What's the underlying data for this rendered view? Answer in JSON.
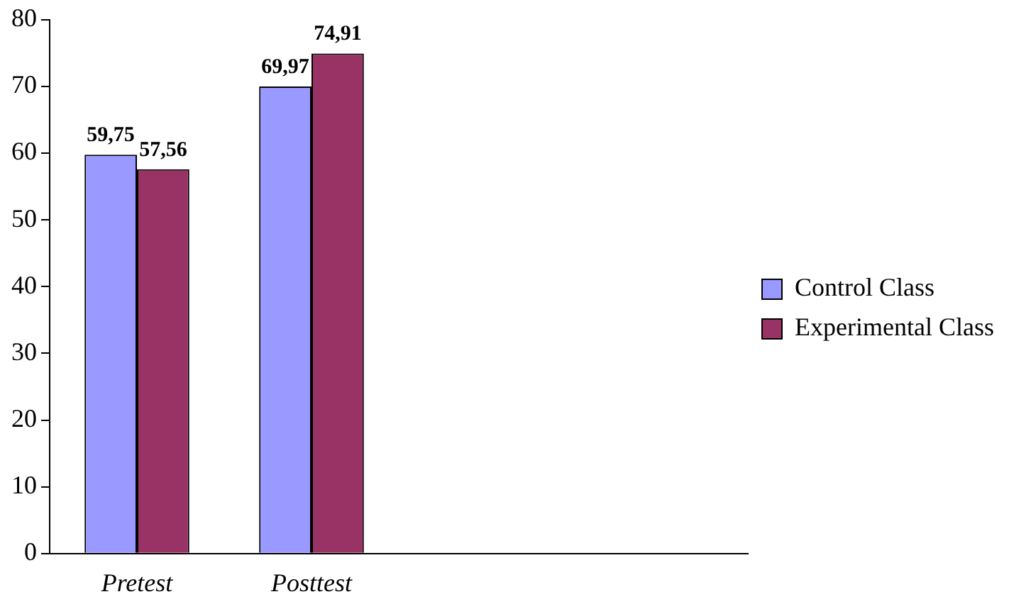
{
  "chart_data": {
    "type": "bar",
    "categories": [
      "Pretest",
      "Posttest",
      null,
      null
    ],
    "series": [
      {
        "name": "Control Class",
        "color": "#9999ff",
        "values": [
          59.75,
          69.97,
          null,
          null
        ],
        "value_labels": [
          "59,75",
          "69,97",
          null,
          null
        ]
      },
      {
        "name": "Experimental Class",
        "color": "#993366",
        "values": [
          57.56,
          74.91,
          null,
          null
        ],
        "value_labels": [
          "57,56",
          "74,91",
          null,
          null
        ]
      }
    ],
    "ylim": [
      0,
      80
    ],
    "yticks": [
      0,
      10,
      20,
      30,
      40,
      50,
      60,
      70,
      80
    ],
    "grid": false,
    "legend": "right"
  }
}
